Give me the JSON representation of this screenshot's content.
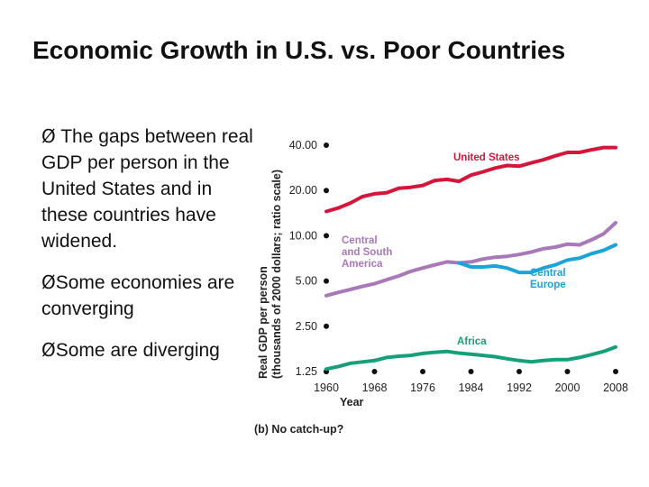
{
  "slide": {
    "title": "Economic Growth in U.S. vs. Poor Countries",
    "bullets": [
      {
        "marker": "Ø",
        "text": " The gaps between real GDP per person in the United States and in these countries have widened."
      },
      {
        "marker": "Ø",
        "text": "Some economies are converging"
      },
      {
        "marker": "Ø",
        "text": "Some are diverging"
      }
    ]
  },
  "chart_data": {
    "type": "line",
    "title": "",
    "caption": "(b) No catch-up?",
    "xlabel": "Year",
    "ylabel_line1": "Real GDP per person",
    "ylabel_line2": "(thousands of 2000 dollars; ratio scale)",
    "y_scale": "log2",
    "x_ticks": [
      "1960",
      "1968",
      "1976",
      "1984",
      "1992",
      "2000",
      "2008"
    ],
    "y_ticks": [
      "40.00",
      "20.00",
      "10.00",
      "5.00",
      "2.50",
      "1.25"
    ],
    "y_tick_values": [
      40,
      20,
      10,
      5,
      2.5,
      1.25
    ],
    "xlim": [
      1960,
      2008
    ],
    "ylim": [
      1.25,
      40
    ],
    "series": [
      {
        "name": "United States",
        "label": "United States",
        "color": "#d5163a",
        "x": [
          1960,
          1962,
          1964,
          1966,
          1968,
          1970,
          1972,
          1974,
          1976,
          1978,
          1980,
          1982,
          1984,
          1986,
          1988,
          1990,
          1992,
          1994,
          1996,
          1998,
          2000,
          2002,
          2004,
          2006,
          2008
        ],
        "y": [
          14.5,
          15.3,
          16.5,
          18.2,
          19.0,
          19.3,
          20.7,
          21.0,
          21.6,
          23.3,
          23.7,
          23.0,
          25.3,
          26.6,
          28.2,
          29.3,
          29.0,
          30.5,
          32.0,
          34.0,
          35.8,
          35.8,
          37.3,
          38.6,
          38.6
        ]
      },
      {
        "name": "Central and South America",
        "label": "Central\nand South\nAmerica",
        "color": "#a878b8",
        "x": [
          1960,
          1962,
          1964,
          1966,
          1968,
          1970,
          1972,
          1974,
          1976,
          1978,
          1980,
          1982,
          1984,
          1986,
          1988,
          1990,
          1992,
          1994,
          1996,
          1998,
          2000,
          2002,
          2004,
          2006,
          2008
        ],
        "y": [
          4.0,
          4.2,
          4.4,
          4.6,
          4.8,
          5.1,
          5.4,
          5.8,
          6.1,
          6.4,
          6.7,
          6.6,
          6.7,
          7.0,
          7.2,
          7.3,
          7.5,
          7.8,
          8.2,
          8.4,
          8.8,
          8.7,
          9.4,
          10.3,
          12.2
        ]
      },
      {
        "name": "Central Europe",
        "label": "Central\nEurope",
        "color": "#1aa4dc",
        "x": [
          1982,
          1984,
          1986,
          1988,
          1990,
          1992,
          1994,
          1996,
          1998,
          2000,
          2002,
          2004,
          2006,
          2008
        ],
        "y": [
          6.6,
          6.2,
          6.2,
          6.3,
          6.1,
          5.7,
          5.7,
          6.1,
          6.4,
          6.9,
          7.1,
          7.6,
          8.0,
          8.7
        ]
      },
      {
        "name": "Africa",
        "label": "Africa",
        "color": "#16a07a",
        "x": [
          1960,
          1962,
          1964,
          1966,
          1968,
          1970,
          1972,
          1974,
          1976,
          1978,
          1980,
          1982,
          1984,
          1986,
          1988,
          1990,
          1992,
          1994,
          1996,
          1998,
          2000,
          2002,
          2004,
          2006,
          2008
        ],
        "y": [
          1.3,
          1.35,
          1.42,
          1.45,
          1.48,
          1.55,
          1.58,
          1.6,
          1.65,
          1.68,
          1.7,
          1.66,
          1.63,
          1.6,
          1.57,
          1.52,
          1.48,
          1.45,
          1.48,
          1.5,
          1.5,
          1.55,
          1.62,
          1.7,
          1.82
        ]
      }
    ]
  }
}
